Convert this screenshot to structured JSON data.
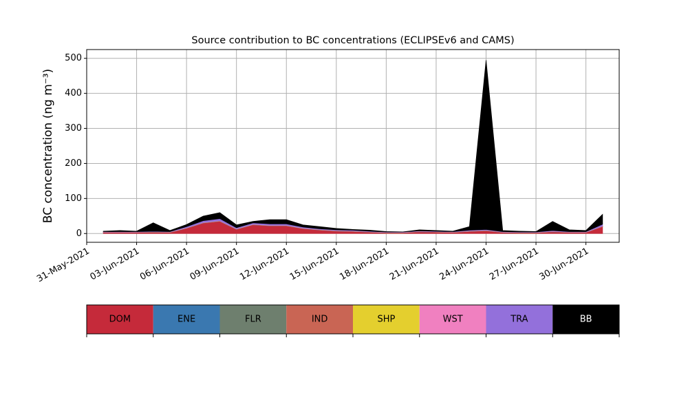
{
  "chart_data": {
    "type": "stacked-area",
    "title": "Source contribution to BC concentrations (ECLIPSEv6 and CAMS)",
    "y_label": "BC concentration (ng m⁻³)",
    "x": [
      "01-Jun-2021",
      "02-Jun-2021",
      "03-Jun-2021",
      "04-Jun-2021",
      "05-Jun-2021",
      "06-Jun-2021",
      "07-Jun-2021",
      "08-Jun-2021",
      "09-Jun-2021",
      "10-Jun-2021",
      "11-Jun-2021",
      "12-Jun-2021",
      "13-Jun-2021",
      "14-Jun-2021",
      "15-Jun-2021",
      "16-Jun-2021",
      "17-Jun-2021",
      "18-Jun-2021",
      "19-Jun-2021",
      "20-Jun-2021",
      "21-Jun-2021",
      "22-Jun-2021",
      "23-Jun-2021",
      "24-Jun-2021",
      "25-Jun-2021",
      "26-Jun-2021",
      "27-Jun-2021",
      "28-Jun-2021",
      "29-Jun-2021",
      "30-Jun-2021",
      "01-Jul-2021"
    ],
    "series": [
      {
        "name": "DOM",
        "color": "#c52a3a",
        "values": [
          3,
          3,
          3,
          4,
          3,
          15,
          30,
          35,
          12,
          25,
          22,
          22,
          14,
          10,
          7,
          6,
          4,
          2,
          2,
          5,
          4,
          3,
          6,
          8,
          3,
          2,
          2,
          5,
          3,
          3,
          20
        ]
      },
      {
        "name": "ENE",
        "color": "#3a78b0",
        "values": [
          0.3,
          0.3,
          0.3,
          0.3,
          0.3,
          0.3,
          0.3,
          0.3,
          0.3,
          0.3,
          0.3,
          0.3,
          0.3,
          0.3,
          0.3,
          0.3,
          0.3,
          0.3,
          0.3,
          0.3,
          0.3,
          0.3,
          0.3,
          0.3,
          0.3,
          0.3,
          0.3,
          0.3,
          0.3,
          0.3,
          0.3
        ]
      },
      {
        "name": "FLR",
        "color": "#6e7f6e",
        "values": [
          0.1,
          0.1,
          0.1,
          0.1,
          0.1,
          0.1,
          0.1,
          0.1,
          0.1,
          0.1,
          0.1,
          0.1,
          0.1,
          0.1,
          0.1,
          0.1,
          0.1,
          0.1,
          0.1,
          0.1,
          0.1,
          0.1,
          0.1,
          0.1,
          0.1,
          0.1,
          0.1,
          0.1,
          0.1,
          0.1,
          0.1
        ]
      },
      {
        "name": "IND",
        "color": "#c96554",
        "values": [
          0.5,
          0.5,
          0.5,
          0.5,
          0.5,
          0.5,
          0.5,
          0.5,
          0.5,
          0.5,
          0.5,
          0.5,
          0.5,
          0.5,
          0.5,
          0.5,
          0.5,
          0.5,
          0.5,
          0.5,
          0.5,
          0.5,
          0.5,
          0.5,
          0.5,
          0.5,
          0.5,
          0.5,
          0.5,
          0.5,
          0.5
        ]
      },
      {
        "name": "SHP",
        "color": "#e4cf2e",
        "values": [
          0.2,
          0.2,
          0.2,
          0.2,
          0.2,
          0.2,
          0.2,
          0.2,
          0.2,
          0.2,
          0.2,
          0.2,
          0.2,
          0.2,
          0.2,
          0.2,
          0.2,
          0.2,
          0.2,
          0.2,
          0.2,
          0.2,
          0.2,
          0.2,
          0.2,
          0.2,
          0.2,
          0.2,
          0.2,
          0.2,
          0.2
        ]
      },
      {
        "name": "WST",
        "color": "#f080c0",
        "values": [
          0.5,
          0.5,
          0.5,
          0.5,
          0.5,
          0.5,
          0.5,
          0.5,
          0.5,
          0.5,
          0.5,
          0.5,
          0.5,
          0.5,
          0.5,
          0.5,
          0.5,
          0.5,
          0.5,
          0.5,
          0.5,
          0.5,
          0.5,
          0.5,
          0.5,
          0.5,
          0.5,
          0.5,
          0.5,
          0.5,
          0.5
        ]
      },
      {
        "name": "TRA",
        "color": "#9370db",
        "values": [
          1,
          1,
          1,
          1,
          1,
          3,
          5,
          6,
          3,
          4,
          4,
          4,
          3,
          2,
          2,
          2,
          1,
          1,
          1,
          1,
          1,
          1,
          2,
          2,
          1,
          1,
          1,
          2,
          1,
          1,
          5
        ]
      },
      {
        "name": "BB",
        "color": "#000000",
        "values": [
          1,
          3,
          1,
          24,
          3,
          6,
          13,
          17,
          8,
          4,
          12,
          12,
          6,
          6,
          4,
          2,
          3,
          1,
          0,
          3,
          2,
          1,
          10,
          483,
          3,
          2,
          1,
          26,
          5,
          3,
          28
        ]
      }
    ],
    "xlim": [
      "31-May-2021",
      "02-Jul-2021"
    ],
    "xticks": [
      "31-May-2021",
      "03-Jun-2021",
      "06-Jun-2021",
      "09-Jun-2021",
      "12-Jun-2021",
      "15-Jun-2021",
      "18-Jun-2021",
      "21-Jun-2021",
      "24-Jun-2021",
      "27-Jun-2021",
      "30-Jun-2021"
    ],
    "ylim": [
      -25,
      525
    ],
    "yticks": [
      0,
      100,
      200,
      300,
      400,
      500
    ],
    "grid": true
  }
}
